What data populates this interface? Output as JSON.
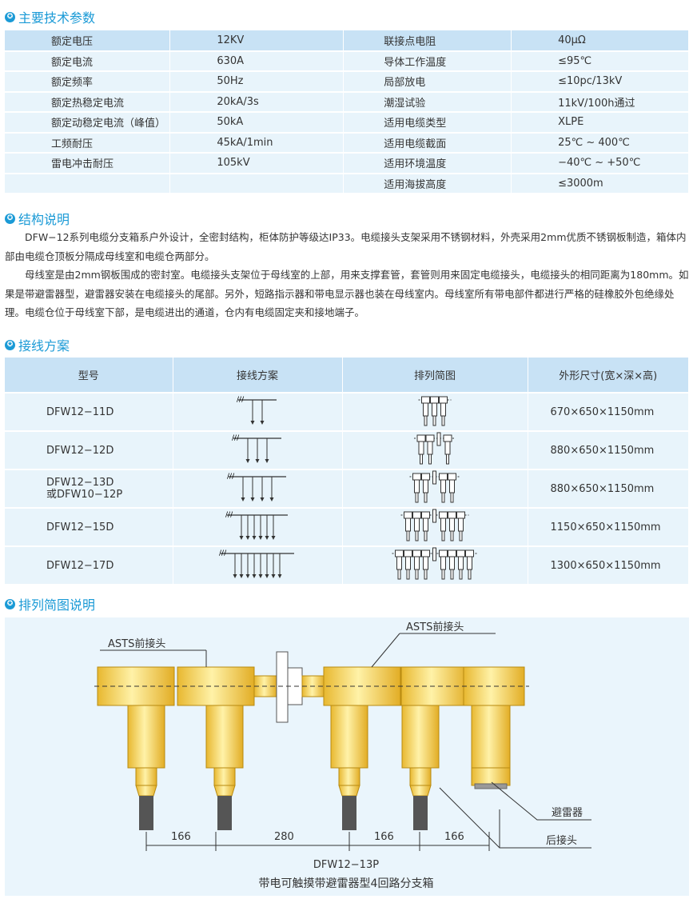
{
  "sections": {
    "params": "主要技术参数",
    "structure": "结构说明",
    "wiring": "接线方案",
    "layout": "排列简图说明"
  },
  "params": [
    [
      "额定电压",
      "12KV",
      "联接点电阻",
      "40μΩ"
    ],
    [
      "额定电流",
      "630A",
      "导体工作温度",
      "≤95℃"
    ],
    [
      "额定频率",
      "50Hz",
      "局部放电",
      "≤10pc/13kV"
    ],
    [
      "额定热稳定电流",
      "20kA/3s",
      "潮湿试验",
      "11kV/100h通过"
    ],
    [
      "额定动稳定电流（峰值）",
      "50kA",
      "适用电缆类型",
      "XLPE"
    ],
    [
      "工频耐压",
      "45kA/1min",
      "适用电缆截面",
      "25℃ ~ 400℃"
    ],
    [
      "雷电冲击耐压",
      "105kV",
      "适用环境温度",
      "−40℃ ~ +50℃"
    ],
    [
      "",
      "",
      "适用海拔高度",
      "≤3000m"
    ]
  ],
  "structure": [
    "DFW−12系列电缆分支箱系户外设计，全密封结构，柜体防护等级达IP33。电缆接头支架采用不锈钢材料，外壳采用2mm优质不锈钢板制造，箱体内部由电缆仓顶板分隔成母线室和电缆仓两部分。",
    "母线室是由2mm钢板围成的密封室。电缆接头支架位于母线室的上部，用来支撑套管，套管则用来固定电缆接头，电缆接头的相同距离为180mm。如果是带避雷器型，避雷器安装在电缆接头的尾部。另外，短路指示器和带电显示器也装在母线室内。母线室所有带电部件都进行严格的硅橡胶外包绝缘处理。电缆仓位于母线室下部，是电缆进出的通道，仓内有电缆固定夹和接地端子。"
  ],
  "wiring": {
    "headers": [
      "型号",
      "接线方案",
      "排列简图",
      "外形尺寸(宽×深×高)"
    ],
    "rows": [
      {
        "model": "DFW12−11D",
        "model2": "",
        "branches": 2,
        "size": "670×650×1150mm"
      },
      {
        "model": "DFW12−12D",
        "model2": "",
        "branches": 3,
        "size": "880×650×1150mm"
      },
      {
        "model": "DFW12−13D",
        "model2": "或DFW10−12P",
        "branches": 4,
        "size": "880×650×1150mm"
      },
      {
        "model": "DFW12−15D",
        "model2": "",
        "branches": 6,
        "size": "1150×650×1150mm"
      },
      {
        "model": "DFW12−17D",
        "model2": "",
        "branches": 8,
        "size": "1300×650×1150mm"
      }
    ]
  },
  "diagram": {
    "label_front1": "ASTS前接头",
    "label_front2": "ASTS前接头",
    "label_arrester": "避雷器",
    "label_rear": "后接头",
    "dims": [
      "166",
      "280",
      "166",
      "166"
    ],
    "model": "DFW12−13P",
    "caption": "带电可触摸带避雷器型4回路分支箱",
    "colors": {
      "body": "#f7d35a",
      "rod": "#555555"
    }
  }
}
